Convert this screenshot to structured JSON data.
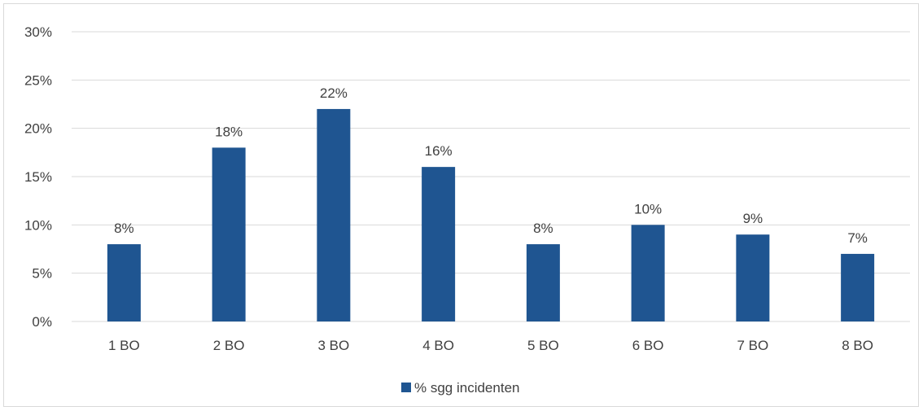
{
  "chart_data": {
    "type": "bar",
    "categories": [
      "1 BO",
      "2 BO",
      "3 BO",
      "4 BO",
      "5 BO",
      "6 BO",
      "7 BO",
      "8 BO"
    ],
    "series": [
      {
        "name": "% sgg incidenten",
        "values": [
          8,
          18,
          22,
          16,
          8,
          10,
          9,
          7
        ],
        "labels": [
          "8%",
          "18%",
          "22%",
          "16%",
          "8%",
          "10%",
          "9%",
          "7%"
        ],
        "color": "#1f5591"
      }
    ],
    "yticks": [
      "0%",
      "5%",
      "10%",
      "15%",
      "20%",
      "25%",
      "30%"
    ],
    "ylim": [
      0,
      30
    ],
    "grid": true,
    "legend_position": "bottom",
    "colors": {
      "bar": "#1f5591",
      "grid": "#d9d9d9",
      "text": "#404040",
      "border": "#d9d9d9"
    }
  }
}
